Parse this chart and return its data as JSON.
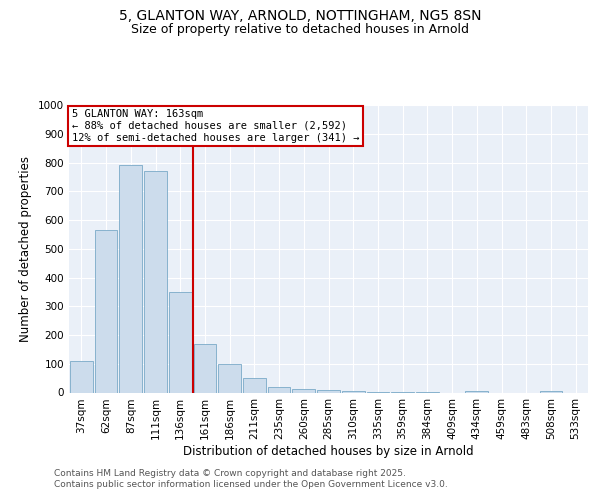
{
  "title_line1": "5, GLANTON WAY, ARNOLD, NOTTINGHAM, NG5 8SN",
  "title_line2": "Size of property relative to detached houses in Arnold",
  "xlabel": "Distribution of detached houses by size in Arnold",
  "ylabel": "Number of detached properties",
  "categories": [
    "37sqm",
    "62sqm",
    "87sqm",
    "111sqm",
    "136sqm",
    "161sqm",
    "186sqm",
    "211sqm",
    "235sqm",
    "260sqm",
    "285sqm",
    "310sqm",
    "335sqm",
    "359sqm",
    "384sqm",
    "409sqm",
    "434sqm",
    "459sqm",
    "483sqm",
    "508sqm",
    "533sqm"
  ],
  "values": [
    110,
    565,
    790,
    770,
    350,
    170,
    100,
    52,
    18,
    13,
    8,
    5,
    3,
    2,
    1,
    0,
    5,
    0,
    0,
    5,
    0
  ],
  "bar_color": "#ccdcec",
  "bar_edge_color": "#7aaac8",
  "redline_index": 5,
  "annotation_line1": "5 GLANTON WAY: 163sqm",
  "annotation_line2": "← 88% of detached houses are smaller (2,592)",
  "annotation_line3": "12% of semi-detached houses are larger (341) →",
  "annotation_box_color": "#ffffff",
  "annotation_box_edgecolor": "#cc0000",
  "ylim": [
    0,
    1000
  ],
  "yticks": [
    0,
    100,
    200,
    300,
    400,
    500,
    600,
    700,
    800,
    900,
    1000
  ],
  "background_color": "#eaf0f8",
  "grid_color": "#ffffff",
  "footer_line1": "Contains HM Land Registry data © Crown copyright and database right 2025.",
  "footer_line2": "Contains public sector information licensed under the Open Government Licence v3.0.",
  "title_fontsize": 10,
  "subtitle_fontsize": 9,
  "axis_label_fontsize": 8.5,
  "tick_fontsize": 7.5,
  "footer_fontsize": 6.5
}
